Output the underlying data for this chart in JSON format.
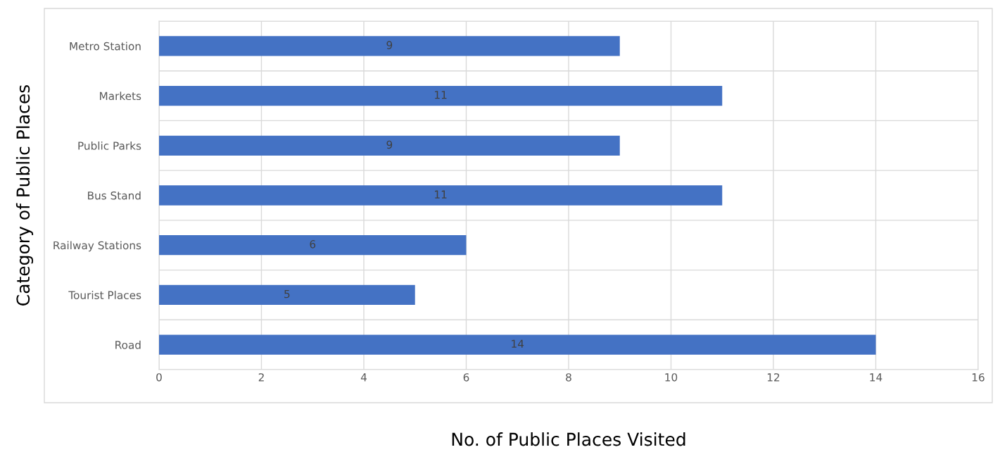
{
  "chart_data": {
    "type": "bar",
    "orientation": "horizontal",
    "categories": [
      "Metro Station",
      "Markets",
      "Public Parks",
      "Bus Stand",
      "Railway Stations",
      "Tourist Places",
      "Road"
    ],
    "values": [
      9,
      11,
      9,
      11,
      6,
      5,
      14
    ],
    "color": "#4472c4",
    "xlim": [
      0,
      16
    ],
    "xticks": [
      0,
      2,
      4,
      6,
      8,
      10,
      12,
      14,
      16
    ],
    "xlabel": "No. of Public Places Visited",
    "ylabel": "Category of Public Places",
    "data_labels": true,
    "grid": true,
    "legend": false
  }
}
